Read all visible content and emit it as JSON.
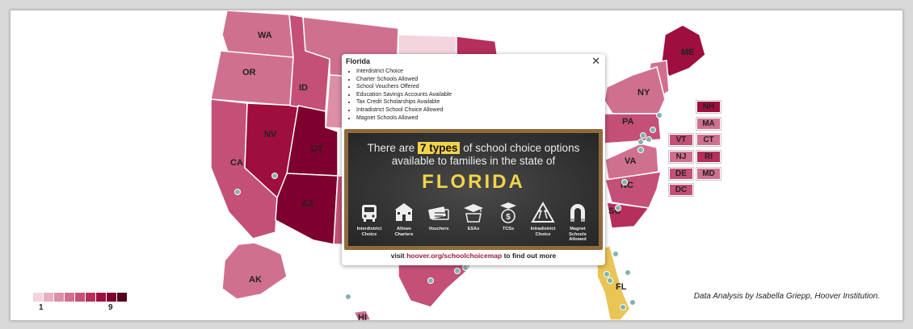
{
  "colors": {
    "scale": [
      "#f4d4dd",
      "#e8b1c2",
      "#dc8fa7",
      "#d0708f",
      "#c45077",
      "#b42f5c",
      "#9e0e3e",
      "#7d002e",
      "#51001f"
    ],
    "highlight": "#e9c556",
    "dot": "#7fb3b0"
  },
  "map": {
    "states": [
      {
        "code": "WA",
        "label": "WA",
        "level": 4
      },
      {
        "code": "OR",
        "label": "OR",
        "level": 4
      },
      {
        "code": "CA",
        "label": "CA",
        "level": 5
      },
      {
        "code": "NV",
        "label": "NV",
        "level": 7
      },
      {
        "code": "ID",
        "label": "ID",
        "level": 5
      },
      {
        "code": "MT",
        "label": "",
        "level": 4
      },
      {
        "code": "WY",
        "label": "",
        "level": 3
      },
      {
        "code": "UT",
        "label": "UT",
        "level": 8
      },
      {
        "code": "AZ",
        "label": "AZ",
        "level": 8
      },
      {
        "code": "NM",
        "label": "",
        "level": 5
      },
      {
        "code": "ND",
        "label": "",
        "level": 1
      },
      {
        "code": "MN",
        "label": "",
        "level": 6
      },
      {
        "code": "TX",
        "label": "",
        "level": 5
      },
      {
        "code": "ME",
        "label": "ME",
        "level": 7
      },
      {
        "code": "NY",
        "label": "NY",
        "level": 4
      },
      {
        "code": "PA",
        "label": "PA",
        "level": 5
      },
      {
        "code": "VA",
        "label": "VA",
        "level": 4
      },
      {
        "code": "NC",
        "label": "NC",
        "level": 5
      },
      {
        "code": "SC",
        "label": "SC",
        "level": 6
      },
      {
        "code": "FL",
        "label": "FL",
        "level": 0
      },
      {
        "code": "AK",
        "label": "AK",
        "level": 4
      },
      {
        "code": "HI",
        "label": "HI",
        "level": 4
      }
    ],
    "small_states": [
      {
        "code": "NH",
        "label": "NH",
        "level": 7
      },
      {
        "code": "MA",
        "label": "MA",
        "level": 4
      },
      {
        "code": "VT",
        "label": "VT",
        "level": 5
      },
      {
        "code": "CT",
        "label": "CT",
        "level": 4
      },
      {
        "code": "NJ",
        "label": "NJ",
        "level": 4
      },
      {
        "code": "RI",
        "label": "RI",
        "level": 6
      },
      {
        "code": "DE",
        "label": "DE",
        "level": 5
      },
      {
        "code": "MD",
        "label": "MD",
        "level": 4
      },
      {
        "code": "DC",
        "label": "DC",
        "level": 5
      }
    ]
  },
  "legend": {
    "min_label": "1",
    "max_label": "9"
  },
  "credit": "Data Analysis by Isabella Griepp, Hoover Institution.",
  "popup": {
    "title": "Florida",
    "close_icon": "close-icon",
    "items": [
      "Interdistrict Choice",
      "Charter Schools Allowed",
      "School Vouchers Offered",
      "Education Savings Accounts Available",
      "Tax Credit Scholarships Available",
      "Intradistrict School Choice Allowed",
      "Magnet Schools Allowed"
    ],
    "headline_pre": "There are ",
    "headline_highlight": "7 types",
    "headline_mid": " of school choice options",
    "headline_line2": "available to families in the state of",
    "state_name": "FLORIDA",
    "icons": [
      {
        "icon": "school-bus-icon",
        "label": "Interdistrict Choice"
      },
      {
        "icon": "schoolhouse-icon",
        "label": "Allows Charters"
      },
      {
        "icon": "voucher-ticket-icon",
        "label": "Vouchers"
      },
      {
        "icon": "graduation-cap-map-icon",
        "label": "ESAs"
      },
      {
        "icon": "money-bag-cap-icon",
        "label": "TCSs"
      },
      {
        "icon": "school-crossing-icon",
        "label": "Intradistrict Choice"
      },
      {
        "icon": "magnet-school-icon",
        "label": "Magnet Schools Allowed"
      }
    ],
    "visit_pre": "visit ",
    "visit_link": "hoover.org/schoolchoicemap",
    "visit_post": " to find out more"
  }
}
